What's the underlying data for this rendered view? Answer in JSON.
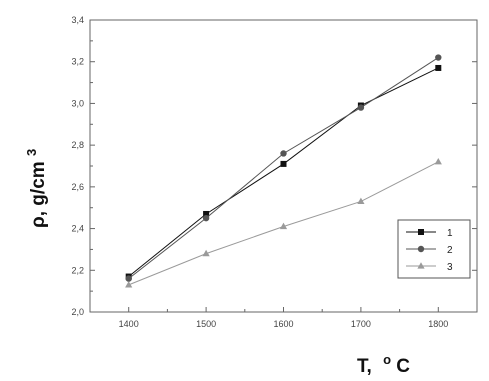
{
  "chart_data": {
    "type": "line",
    "x": [
      1400,
      1500,
      1600,
      1700,
      1800
    ],
    "xlim": [
      1350,
      1850
    ],
    "ylim": [
      2.0,
      3.4
    ],
    "xticks": [
      1400,
      1500,
      1600,
      1700,
      1800
    ],
    "yticks": [
      "2,0",
      "2,2",
      "2,4",
      "2,6",
      "2,8",
      "3,0",
      "3,2",
      "3,4"
    ],
    "xlabel": "T,",
    "xlabel_unit": "C",
    "xlabel_sup": "o",
    "ylabel": "ρ, g/cm",
    "ylabel_sup": "3",
    "grid": false,
    "legend_position": "bottom-right",
    "series": [
      {
        "name": "1",
        "values": [
          2.17,
          2.47,
          2.71,
          2.99,
          3.17
        ],
        "color": "#111111",
        "marker": "square"
      },
      {
        "name": "2",
        "values": [
          2.16,
          2.45,
          2.76,
          2.98,
          3.22
        ],
        "color": "#555555",
        "marker": "circle"
      },
      {
        "name": "3",
        "values": [
          2.13,
          2.28,
          2.41,
          2.53,
          2.72
        ],
        "color": "#9a9a9a",
        "marker": "triangle"
      }
    ]
  }
}
